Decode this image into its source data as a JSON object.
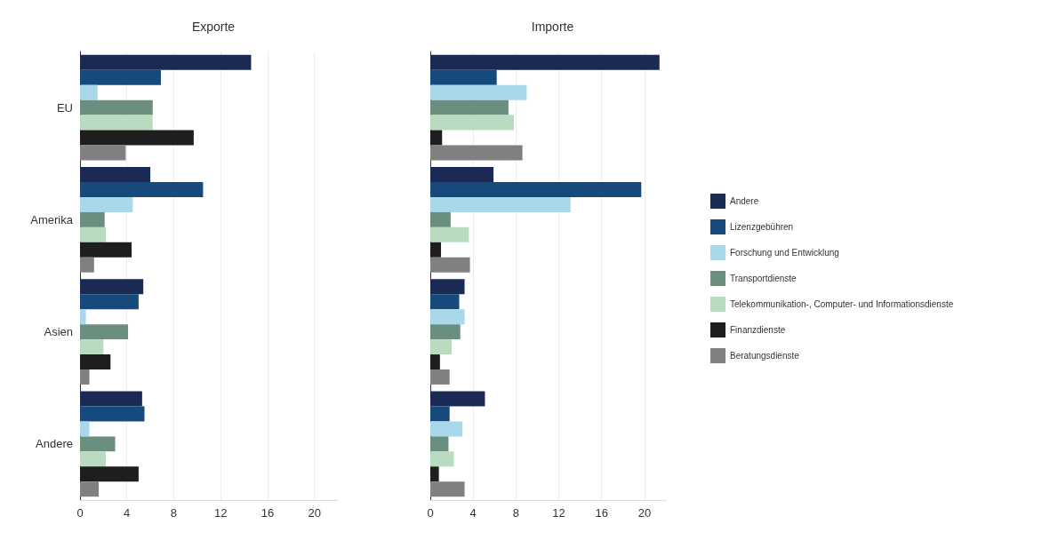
{
  "chart_data": [
    {
      "type": "bar",
      "orientation": "horizontal",
      "title": "Exporte",
      "categories": [
        "EU",
        "Amerika",
        "Asien",
        "Andere"
      ],
      "xlim": [
        0,
        22
      ],
      "xticks": [
        0,
        4,
        8,
        12,
        16,
        20
      ],
      "grid": "x",
      "legend": false,
      "series": [
        {
          "color": "#1b2a55",
          "values": [
            14.6,
            6.0,
            5.4,
            5.3
          ]
        },
        {
          "color": "#174a7c",
          "values": [
            6.9,
            10.5,
            5.0,
            5.5
          ]
        },
        {
          "color": "#a9d8ea",
          "values": [
            1.5,
            4.5,
            0.5,
            0.8
          ]
        },
        {
          "color": "#6a8f7f",
          "values": [
            6.2,
            2.1,
            4.1,
            3.0
          ]
        },
        {
          "color": "#b9dcc0",
          "values": [
            6.2,
            2.2,
            2.0,
            2.2
          ]
        },
        {
          "color": "#1e1e1e",
          "values": [
            9.7,
            4.4,
            2.6,
            5.0
          ]
        },
        {
          "color": "#808080",
          "values": [
            3.9,
            1.2,
            0.8,
            1.6
          ]
        }
      ]
    },
    {
      "type": "bar",
      "orientation": "horizontal",
      "title": "Importe",
      "categories": [
        null,
        null,
        null,
        null
      ],
      "xlim": [
        0,
        22
      ],
      "xticks": [
        0,
        4,
        8,
        12,
        16,
        20
      ],
      "grid": "x",
      "legend": "right",
      "tick_labels": "x",
      "series": [
        {
          "name": "Andere",
          "color": "#1b2a55",
          "values": [
            21.4,
            5.9,
            3.2,
            5.1
          ]
        },
        {
          "name": "Lizenzgebühren",
          "color": "#174a7c",
          "values": [
            6.2,
            19.7,
            2.7,
            1.8
          ]
        },
        {
          "name": "Forschung und Entwicklung",
          "color": "#a9d8ea",
          "values": [
            9.0,
            13.1,
            3.2,
            3.0
          ]
        },
        {
          "name": "Transportdienste",
          "color": "#6a8f7f",
          "values": [
            7.3,
            1.9,
            2.8,
            1.7
          ]
        },
        {
          "name": "Telekommunikation-, Computer- und Informationsdienste",
          "color": "#b9dcc0",
          "values": [
            7.8,
            3.6,
            2.0,
            2.2
          ]
        },
        {
          "name": "Finanzdienste",
          "color": "#1e1e1e",
          "values": [
            1.1,
            1.0,
            0.9,
            0.8
          ]
        },
        {
          "name": "Beratungsdienste",
          "color": "#808080",
          "values": [
            8.6,
            3.7,
            1.8,
            3.2
          ]
        }
      ]
    }
  ]
}
